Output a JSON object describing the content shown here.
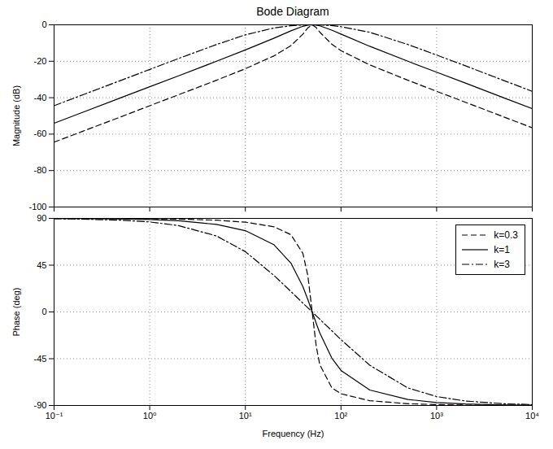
{
  "chart_data": [
    {
      "type": "line",
      "title": "Bode Diagram",
      "ylabel": "Magnitude (dB)",
      "log": "x",
      "grid": true,
      "tick_labels": "y",
      "x": [
        0.1,
        0.2,
        0.5,
        1,
        2,
        5,
        10,
        20,
        30,
        40,
        45,
        50,
        55,
        60,
        80,
        100,
        200,
        500,
        1000,
        2000,
        5000,
        10000
      ],
      "xlim": [
        0.1,
        10000
      ],
      "xticks": [
        {
          "value": 0.1,
          "label": "10⁻¹"
        },
        {
          "value": 1,
          "label": "10⁰"
        },
        {
          "value": 10,
          "label": "10¹"
        },
        {
          "value": 100,
          "label": "10²"
        },
        {
          "value": 1000,
          "label": "10³"
        },
        {
          "value": 10000,
          "label": "10⁴"
        }
      ],
      "ylim": [
        -100,
        0
      ],
      "yticks": [
        -100,
        -80,
        -60,
        -40,
        -20,
        0
      ],
      "series": [
        {
          "name": "k=0.3",
          "color": "#000000",
          "line_style": "dashed",
          "values": [
            -64.4,
            -58.4,
            -50.5,
            -44.4,
            -38.4,
            -30.4,
            -24.1,
            -17.0,
            -11.4,
            -5.1,
            -1.7,
            0,
            -1.5,
            -4.0,
            -10.6,
            -14.2,
            -22.0,
            -30.4,
            -36.5,
            -42.5,
            -50.5,
            -56.5
          ]
        },
        {
          "name": "k=1",
          "color": "#000000",
          "line_style": "solid",
          "values": [
            -54.0,
            -48.0,
            -40.0,
            -34.0,
            -28.0,
            -20.0,
            -13.8,
            -7.3,
            -3.3,
            -0.8,
            -0.2,
            0,
            -0.2,
            -0.55,
            -2.9,
            -5.1,
            -11.8,
            -20.0,
            -26.0,
            -32.0,
            -40.0,
            -46.0
          ]
        },
        {
          "name": "k=3",
          "color": "#000000",
          "line_style": "dashdot",
          "values": [
            -44.4,
            -38.4,
            -30.5,
            -24.5,
            -18.5,
            -10.8,
            -5.5,
            -1.7,
            -0.5,
            -0.1,
            0,
            0,
            0,
            -0.1,
            -0.4,
            -1.0,
            -4.1,
            -10.8,
            -16.6,
            -22.5,
            -30.5,
            -36.5
          ]
        }
      ]
    },
    {
      "type": "line",
      "xlabel": "Frequency (Hz)",
      "ylabel": "Phase (deg)",
      "log": "x",
      "grid": true,
      "legend": "top-right",
      "x": [
        0.1,
        0.2,
        0.5,
        1,
        2,
        5,
        10,
        20,
        30,
        40,
        45,
        50,
        55,
        60,
        80,
        100,
        200,
        500,
        1000,
        2000,
        5000,
        10000
      ],
      "xlim": [
        0.1,
        10000
      ],
      "xticks": [
        {
          "value": 0.1,
          "label": "10⁻¹"
        },
        {
          "value": 1,
          "label": "10⁰"
        },
        {
          "value": 10,
          "label": "10¹"
        },
        {
          "value": 100,
          "label": "10²"
        },
        {
          "value": 1000,
          "label": "10³"
        },
        {
          "value": 10000,
          "label": "10⁴"
        }
      ],
      "ylim": [
        -90,
        90
      ],
      "yticks": [
        -90,
        -45,
        0,
        45,
        90
      ],
      "series": [
        {
          "name": "k=0.3",
          "color": "#000000",
          "line_style": "dashed",
          "values": [
            90.0,
            89.9,
            89.8,
            89.7,
            89.3,
            88.3,
            86.4,
            81.9,
            74.3,
            56.3,
            35.1,
            0,
            -32.5,
            -50.7,
            -72.9,
            -78.7,
            -85.4,
            -88.3,
            -89.1,
            -89.6,
            -89.8,
            -89.9
          ]
        },
        {
          "name": "k=1",
          "color": "#000000",
          "line_style": "solid",
          "values": [
            89.9,
            89.8,
            89.4,
            88.9,
            87.7,
            84.2,
            78.2,
            64.5,
            46.9,
            24.2,
            11.9,
            0,
            -10.8,
            -20.2,
            -44.3,
            -56.3,
            -75.1,
            -84.2,
            -87.1,
            -88.6,
            -89.4,
            -89.7
          ]
        },
        {
          "name": "k=3",
          "color": "#000000",
          "line_style": "dashdot",
          "values": [
            89.7,
            89.3,
            88.3,
            86.6,
            83.1,
            73.1,
            58.0,
            35.0,
            19.6,
            8.5,
            4.0,
            0,
            -3.6,
            -7.0,
            -18.0,
            -26.6,
            -51.3,
            -73.1,
            -81.4,
            -85.7,
            -88.3,
            -89.1
          ]
        }
      ]
    }
  ]
}
